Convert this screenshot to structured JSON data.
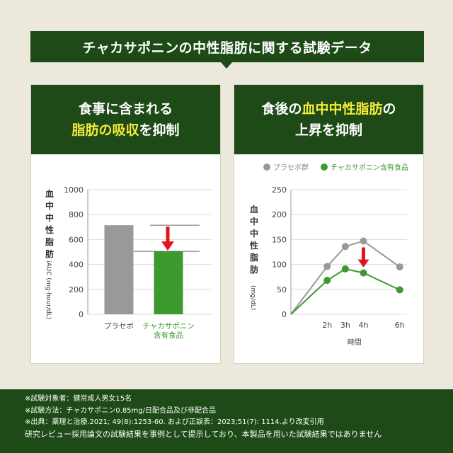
{
  "banner": {
    "title": "チャカサポニンの中性脂肪に関する試験データ"
  },
  "colors": {
    "dark_green": "#1d4a17",
    "highlight_yellow": "#f4ea3a",
    "placebo_gray": "#999999",
    "product_green": "#3c9a2f",
    "arrow_red": "#e2141b"
  },
  "left": {
    "heading_line1": "食事に含まれる",
    "heading_highlight": "脂肪の吸収",
    "heading_rest": "を抑制"
  },
  "right": {
    "heading_line1_pre": "食後の",
    "heading_highlight": "血中中性脂肪",
    "heading_line1_post": "の",
    "heading_line2": "上昇を抑制"
  },
  "chart_data": [
    {
      "type": "bar",
      "ylabel_main": "血中中性脂肪",
      "ylabel_unit": "iAUC (mg·hour/dL)",
      "yticks": [
        "0",
        "200",
        "400",
        "600",
        "800",
        "1000"
      ],
      "ylim": [
        0,
        1000
      ],
      "categories": [
        "プラセボ",
        "チャカサポニン含有食品"
      ],
      "category_lines": [
        [
          "プラセボ"
        ],
        [
          "チャカサポニン",
          "含有食品"
        ]
      ],
      "values": [
        715,
        505
      ],
      "annotation": "red down arrow showing reduction"
    },
    {
      "type": "line",
      "ylabel_main": "血中中性脂肪",
      "ylabel_unit": "(mg/dL)",
      "xlabel": "時間",
      "x": [
        "0",
        "2h",
        "3h",
        "4h",
        "6h"
      ],
      "x_hours": [
        0,
        2,
        3,
        4,
        6
      ],
      "xticks": [
        "2h",
        "3h",
        "4h",
        "6h"
      ],
      "yticks": [
        "0",
        "50",
        "100",
        "150",
        "200",
        "250"
      ],
      "ylim": [
        0,
        250
      ],
      "legend": [
        "プラセボ群",
        "チャカサポニン含有食品"
      ],
      "series": [
        {
          "name": "プラセボ群",
          "values": [
            0,
            96,
            136,
            147,
            95
          ]
        },
        {
          "name": "チャカサポニン含有食品",
          "values": [
            0,
            68,
            91,
            83,
            49
          ]
        }
      ]
    }
  ],
  "footer": {
    "line1": "※試験対象者：健常成人男女15名",
    "line2": "※試験方法：チャカサポニン0.85mg/日配合品及び非配合品",
    "line3": "※出典：薬理と治療.2021; 49(8):1253-60. および正誤表：2023;51(7): 1114.より改変引用",
    "line4": "研究レビュー採用論文の試験結果を事例として提示しており、本製品を用いた試験結果ではありません"
  }
}
